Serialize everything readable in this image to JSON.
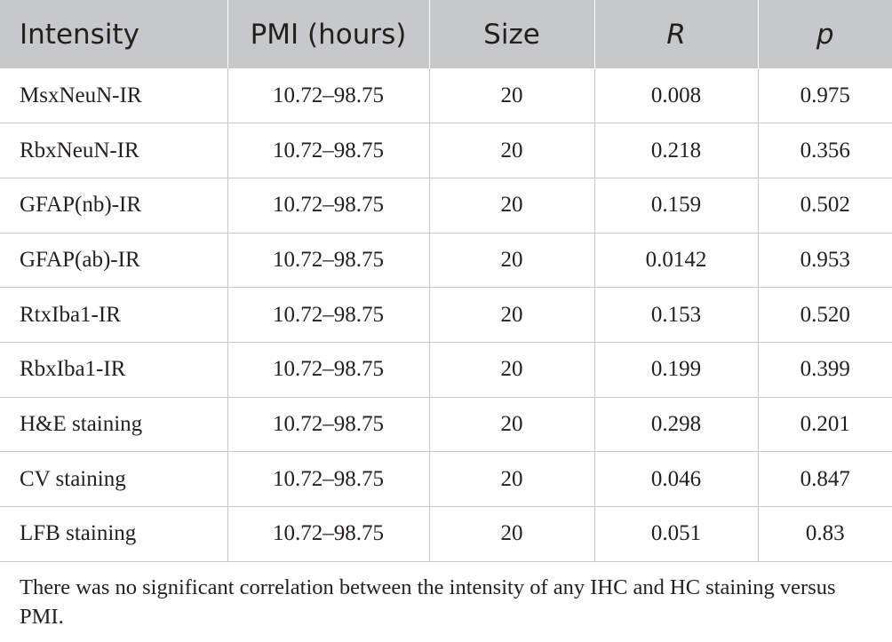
{
  "table": {
    "headers": [
      "Intensity",
      "PMI (hours)",
      "Size",
      "R",
      "p"
    ],
    "rows": [
      [
        "MsxNeuN-IR",
        "10.72–98.75",
        "20",
        "0.008",
        "0.975"
      ],
      [
        "RbxNeuN-IR",
        "10.72–98.75",
        "20",
        "0.218",
        "0.356"
      ],
      [
        "GFAP(nb)-IR",
        "10.72–98.75",
        "20",
        "0.159",
        "0.502"
      ],
      [
        "GFAP(ab)-IR",
        "10.72–98.75",
        "20",
        "0.0142",
        "0.953"
      ],
      [
        "RtxIba1-IR",
        "10.72–98.75",
        "20",
        "0.153",
        "0.520"
      ],
      [
        "RbxIba1-IR",
        "10.72–98.75",
        "20",
        "0.199",
        "0.399"
      ],
      [
        "H&E staining",
        "10.72–98.75",
        "20",
        "0.298",
        "0.201"
      ],
      [
        "CV staining",
        "10.72–98.75",
        "20",
        "0.046",
        "0.847"
      ],
      [
        "LFB staining",
        "10.72–98.75",
        "20",
        "0.051",
        "0.83"
      ]
    ]
  },
  "footnote": "There was no significant correlation between the intensity of any IHC and HC staining versus PMI.",
  "colors": {
    "header_bg": "#c7c8ca",
    "text": "#231f20",
    "rule": "#c7c8ca"
  }
}
